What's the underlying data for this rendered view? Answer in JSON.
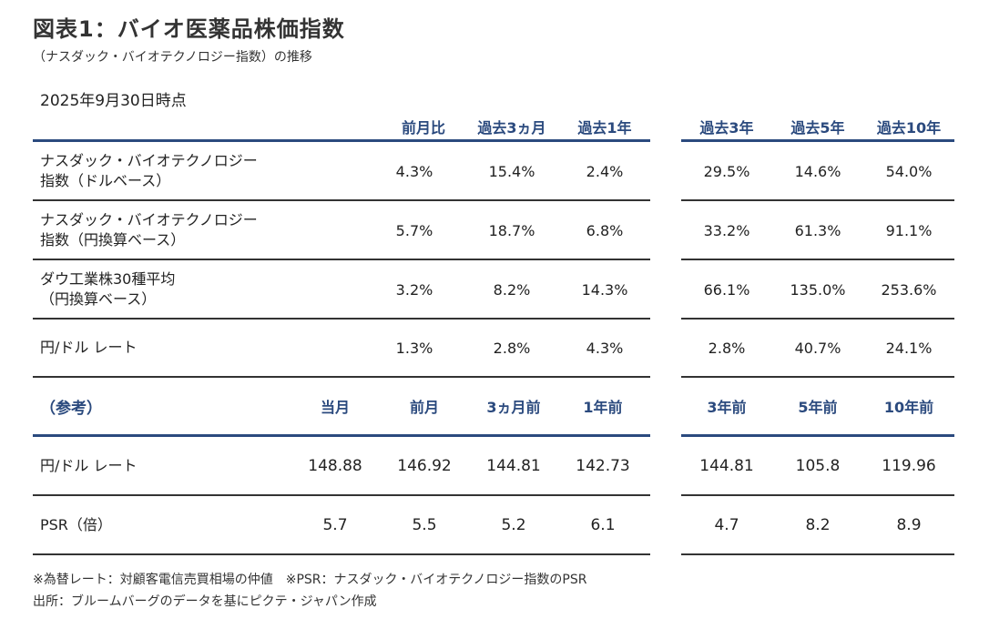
{
  "title": "図表1：バイオ医薬品株価指数",
  "subtitle": "（ナスダック・バイオテクノロジー指数）の推移",
  "as_of": "2025年9月30日時点",
  "upper_table": {
    "headers": [
      "前月比",
      "過去3ヵ月",
      "過去1年",
      "過去3年",
      "過去5年",
      "過去10年"
    ],
    "rows": [
      {
        "label_line1": "ナスダック・バイオテクノロジー",
        "label_line2": "指数（ドルベース）",
        "values": [
          "4.3%",
          "15.4%",
          "2.4%",
          "29.5%",
          "14.6%",
          "54.0%"
        ]
      },
      {
        "label_line1": "ナスダック・バイオテクノロジー",
        "label_line2": "指数（円換算ベース）",
        "values": [
          "5.7%",
          "18.7%",
          "6.8%",
          "33.2%",
          "61.3%",
          "91.1%"
        ]
      },
      {
        "label_line1": "ダウ工業株30種平均",
        "label_line2": "（円換算ベース）",
        "values": [
          "3.2%",
          "8.2%",
          "14.3%",
          "66.1%",
          "135.0%",
          "253.6%"
        ]
      },
      {
        "label_line1": "円/ドル レート",
        "label_line2": "",
        "values": [
          "1.3%",
          "2.8%",
          "4.3%",
          "2.8%",
          "40.7%",
          "24.1%"
        ]
      }
    ]
  },
  "lower_table": {
    "section_label": "（参考）",
    "headers": [
      "当月",
      "前月",
      "3ヵ月前",
      "1年前",
      "3年前",
      "5年前",
      "10年前"
    ],
    "rows": [
      {
        "label": "円/ドル レート",
        "values": [
          "148.88",
          "146.92",
          "144.81",
          "142.73",
          "144.81",
          "105.8",
          "119.96"
        ]
      },
      {
        "label": "PSR（倍）",
        "values": [
          "5.7",
          "5.5",
          "5.2",
          "6.1",
          "4.7",
          "8.2",
          "8.9"
        ]
      }
    ]
  },
  "notes": {
    "line1": "※為替レート：対顧客電信売買相場の仲値　※PSR：ナスダック・バイオテクノロジー指数のPSR",
    "line2": "出所：ブルームバーグのデータを基にピクテ・ジャパン作成"
  },
  "colors": {
    "accent": "#2b4a7e",
    "rule": "#333333"
  }
}
